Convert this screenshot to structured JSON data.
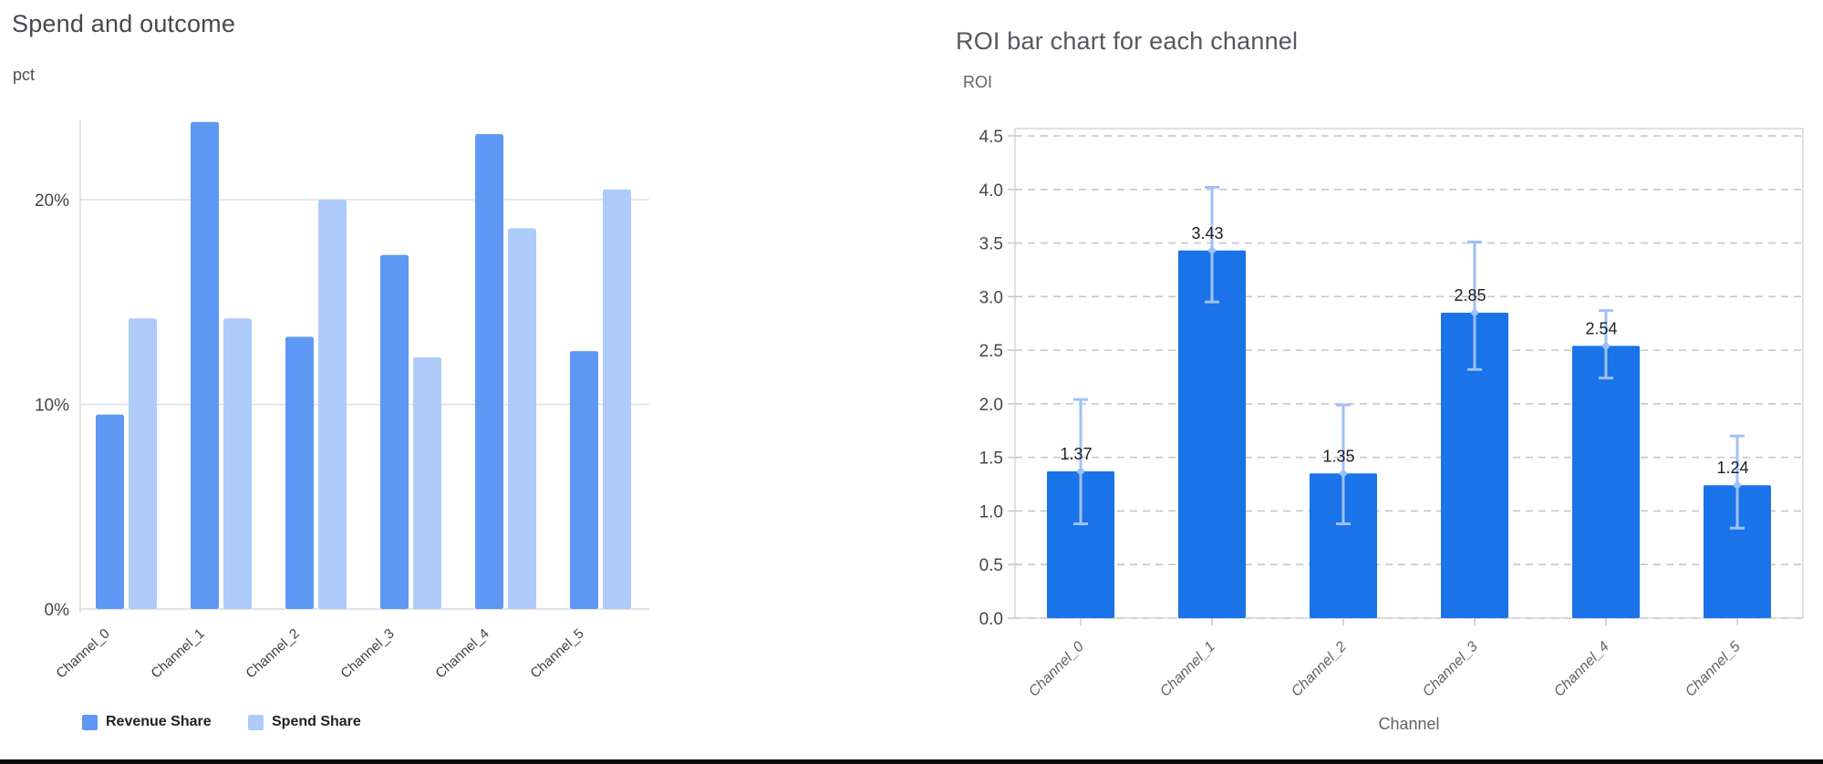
{
  "ui": {
    "background_color": "#ffffff",
    "divider_color": "#0b0b0b"
  },
  "chart_data": [
    {
      "type": "bar",
      "title": "Spend and outcome",
      "y_unit_label": "pct",
      "categories": [
        "Channel_0",
        "Channel_1",
        "Channel_2",
        "Channel_3",
        "Channel_4",
        "Channel_5"
      ],
      "series": [
        {
          "name": "Revenue Share",
          "color": "#5f97f4",
          "values": [
            9.5,
            23.8,
            13.3,
            17.3,
            23.2,
            12.6
          ]
        },
        {
          "name": "Spend Share",
          "color": "#aecbfa",
          "values": [
            14.2,
            14.2,
            20.0,
            12.3,
            18.6,
            20.5
          ]
        }
      ],
      "ytick_labels": [
        "0%",
        "10%",
        "20%"
      ],
      "ytick_values": [
        0,
        10,
        20
      ],
      "ylim": [
        0,
        23.9
      ],
      "grid": "horizontal solid",
      "legend_position": "bottom",
      "colors": {
        "grid": "#dadce0",
        "axis_line": "#d5d7da",
        "tick_text": "#44474b",
        "xtick_text": "#3c4043",
        "title_text": "#46494d",
        "unit_text": "#4a4e52"
      }
    },
    {
      "type": "bar",
      "title": "ROI bar chart for each channel",
      "ylabel": "ROI",
      "xlabel": "Channel",
      "categories": [
        "Channel_0",
        "Channel_1",
        "Channel_2",
        "Channel_3",
        "Channel_4",
        "Channel_5"
      ],
      "values": [
        1.37,
        3.43,
        1.35,
        2.85,
        2.54,
        1.24
      ],
      "value_labels": [
        "1.37",
        "3.43",
        "1.35",
        "2.85",
        "2.54",
        "1.24"
      ],
      "error_low": [
        0.88,
        2.95,
        0.88,
        2.32,
        2.24,
        0.84
      ],
      "error_high": [
        2.04,
        4.02,
        1.99,
        3.51,
        2.87,
        1.7
      ],
      "ytick_labels": [
        "0.0",
        "0.5",
        "1.0",
        "1.5",
        "2.0",
        "2.5",
        "3.0",
        "3.5",
        "4.0",
        "4.5"
      ],
      "ytick_values": [
        0,
        0.5,
        1,
        1.5,
        2,
        2.5,
        3,
        3.5,
        4,
        4.5
      ],
      "ylim": [
        0,
        4.57
      ],
      "grid": "horizontal dashed",
      "bar_color": "#1a73e8",
      "error_color": "#9fc0f9",
      "colors": {
        "spine": "#d2d4d7",
        "grid": "#c6c8ca",
        "tick_text": "#44474b",
        "value_text": "#1d1e20",
        "xtick_text": "#5f6368",
        "title_text": "#55585c",
        "axis_label_text": "#5f6368"
      }
    }
  ]
}
